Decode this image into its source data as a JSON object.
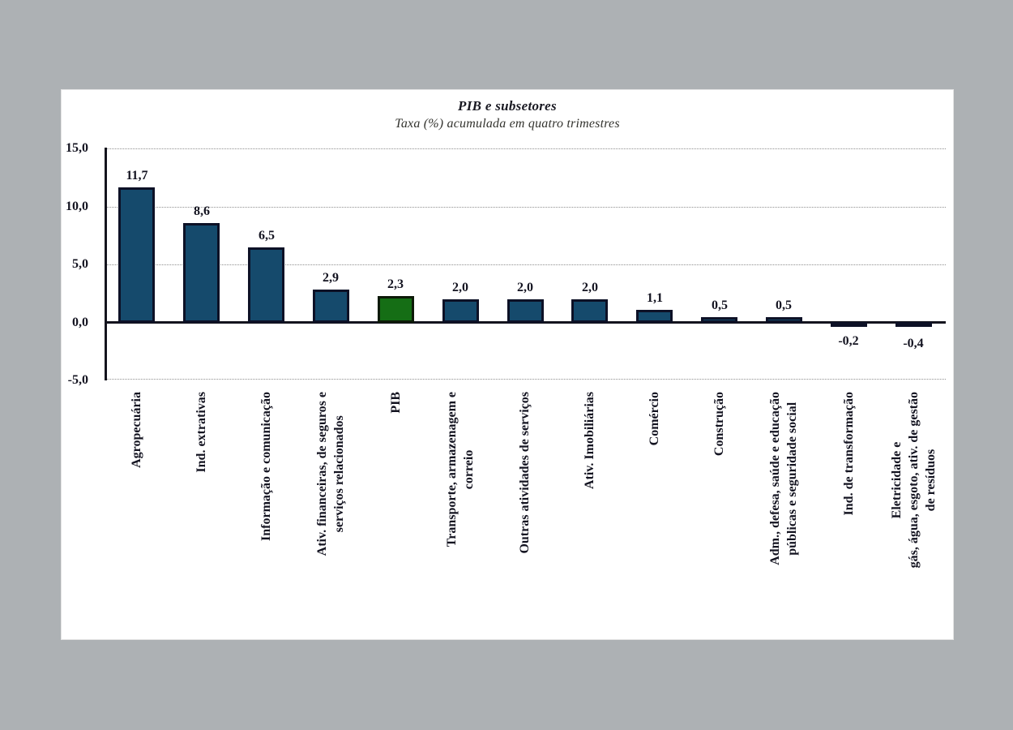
{
  "page": {
    "background_color": "#adb1b4",
    "panel_color": "#ffffff"
  },
  "chart_data": {
    "type": "bar",
    "title": "PIB e subsetores",
    "subtitle": "Taxa (%) acumulada em quatro trimestres",
    "categories": [
      "Agropecuária",
      "Ind. extrativas",
      "Informação e comunicação",
      "Ativ. financeiras, de seguros e serviços relacionados",
      "PIB",
      "Transporte, armazenagem e correio",
      "Outras atividades de serviços",
      "Ativ. Imobiliárias",
      "Comércio",
      "Construção",
      "Adm., defesa, saúde e educação públicas e seguridade social",
      "Ind. de transformação",
      "Eletricidade e gás, água, esgoto, ativ. de gestão de resíduos"
    ],
    "category_display": [
      "Agropecuária",
      "Ind. extrativas",
      "Informação e comunicação",
      "Ativ. financeiras, de seguros e\nserviços relacionados",
      "PIB",
      "Transporte, armazenagem e\ncorreio",
      "Outras atividades de serviços",
      "Ativ. Imobiliárias",
      "Comércio",
      "Construção",
      "Adm., defesa, saúde e educação\npúblicas e seguridade social",
      "Ind. de transformação",
      "Eletricidade e\ngás, água, esgoto, ativ. de gestão\nde resíduos"
    ],
    "values": [
      11.7,
      8.6,
      6.5,
      2.9,
      2.3,
      2.0,
      2.0,
      2.0,
      1.1,
      0.5,
      0.5,
      -0.2,
      -0.4
    ],
    "value_labels": [
      "11,7",
      "8,6",
      "6,5",
      "2,9",
      "2,3",
      "2,0",
      "2,0",
      "2,0",
      "1,1",
      "0,5",
      "0,5",
      "-0,2",
      "-0,4"
    ],
    "highlight_index": 4,
    "ylim": [
      -5,
      15
    ],
    "yticks": [
      {
        "value": 15,
        "label": "15,0"
      },
      {
        "value": 10,
        "label": "10,0"
      },
      {
        "value": 5,
        "label": "5,0"
      },
      {
        "value": 0,
        "label": "0,0"
      },
      {
        "value": -5,
        "label": "-5,0"
      }
    ],
    "gridline_values": [
      15,
      10,
      5,
      -5
    ],
    "grid": "horizontal-dotted",
    "legend": "none",
    "colors": {
      "bar_fill": "#154a6c",
      "bar_border": "#0d1126",
      "highlight_fill": "#156e15",
      "highlight_border": "#0d1a08",
      "axis_line": "#14141e",
      "gridline": "#8f8f8f",
      "label_text": "#131320"
    }
  }
}
